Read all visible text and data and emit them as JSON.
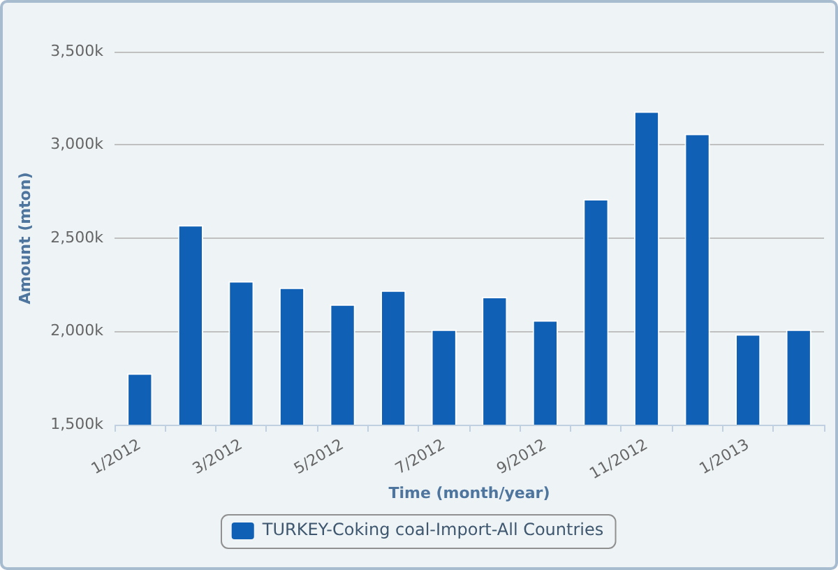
{
  "chart_data": {
    "type": "bar",
    "categories": [
      "1/2012",
      null,
      "3/2012",
      null,
      "5/2012",
      null,
      "7/2012",
      null,
      "9/2012",
      null,
      "11/2012",
      null,
      "1/2013",
      null
    ],
    "series": [
      {
        "name": "TURKEY-Coking coal-Import-All Countries",
        "color": "#1060b5",
        "values": [
          1775,
          2570,
          2270,
          2235,
          2145,
          2220,
          2010,
          2185,
          2060,
          2710,
          3180,
          3060,
          1985,
          2010
        ]
      }
    ],
    "xlabel": "Time (month/year)",
    "ylabel": "Amount (mton)",
    "ylim": [
      1500,
      3500
    ],
    "yticks": [
      {
        "value": 1500,
        "label": "1,500k"
      },
      {
        "value": 2000,
        "label": "2,000k"
      },
      {
        "value": 2500,
        "label": "2,500k"
      },
      {
        "value": 3000,
        "label": "3,000k"
      },
      {
        "value": 3500,
        "label": "3,500k"
      }
    ],
    "grid": "y",
    "legend": "bottom"
  }
}
